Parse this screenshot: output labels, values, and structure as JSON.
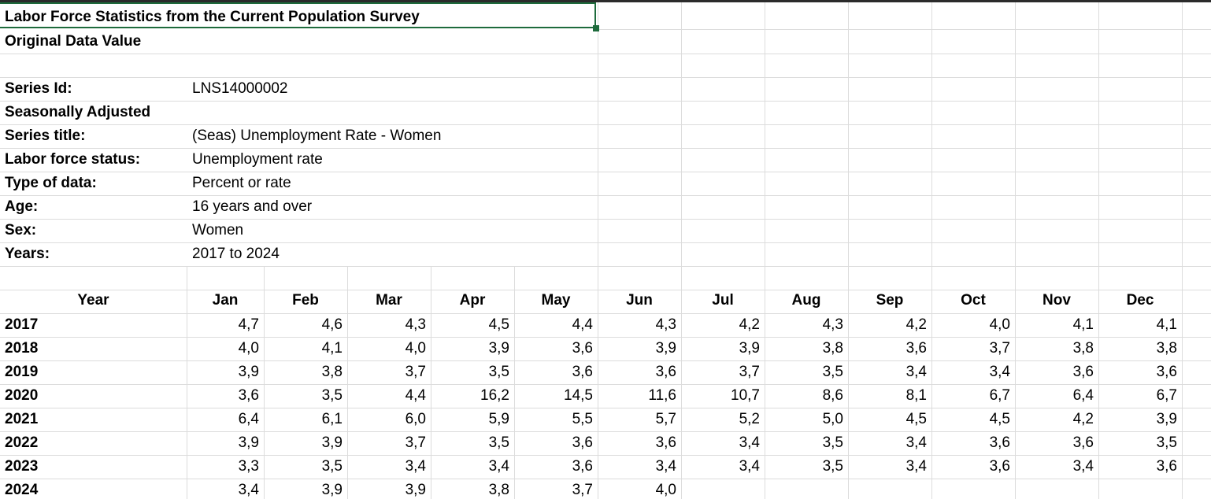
{
  "header": {
    "title": "Labor Force Statistics from the Current Population Survey",
    "subtitle": "Original Data Value"
  },
  "metadata": [
    {
      "label": "Series Id:",
      "value": "LNS14000002"
    },
    {
      "label": "Seasonally Adjusted"
    },
    {
      "label": "Series title:",
      "value": "(Seas) Unemployment Rate - Women"
    },
    {
      "label": "Labor force status:",
      "value": "Unemployment rate"
    },
    {
      "label": "Type of data:",
      "value": "Percent or rate"
    },
    {
      "label": "Age:",
      "value": "16 years and over"
    },
    {
      "label": "Sex:",
      "value": "Women"
    },
    {
      "label": "Years:",
      "value": "2017 to 2024"
    }
  ],
  "table": {
    "columns": [
      "Year",
      "Jan",
      "Feb",
      "Mar",
      "Apr",
      "May",
      "Jun",
      "Jul",
      "Aug",
      "Sep",
      "Oct",
      "Nov",
      "Dec"
    ],
    "rows": [
      [
        "2017",
        "4,7",
        "4,6",
        "4,3",
        "4,5",
        "4,4",
        "4,3",
        "4,2",
        "4,3",
        "4,2",
        "4,0",
        "4,1",
        "4,1"
      ],
      [
        "2018",
        "4,0",
        "4,1",
        "4,0",
        "3,9",
        "3,6",
        "3,9",
        "3,9",
        "3,8",
        "3,6",
        "3,7",
        "3,8",
        "3,8"
      ],
      [
        "2019",
        "3,9",
        "3,8",
        "3,7",
        "3,5",
        "3,6",
        "3,6",
        "3,7",
        "3,5",
        "3,4",
        "3,4",
        "3,6",
        "3,6"
      ],
      [
        "2020",
        "3,6",
        "3,5",
        "4,4",
        "16,2",
        "14,5",
        "11,6",
        "10,7",
        "8,6",
        "8,1",
        "6,7",
        "6,4",
        "6,7"
      ],
      [
        "2021",
        "6,4",
        "6,1",
        "6,0",
        "5,9",
        "5,5",
        "5,7",
        "5,2",
        "5,0",
        "4,5",
        "4,5",
        "4,2",
        "3,9"
      ],
      [
        "2022",
        "3,9",
        "3,9",
        "3,7",
        "3,5",
        "3,6",
        "3,6",
        "3,4",
        "3,5",
        "3,4",
        "3,6",
        "3,6",
        "3,5"
      ],
      [
        "2023",
        "3,3",
        "3,5",
        "3,4",
        "3,4",
        "3,6",
        "3,4",
        "3,4",
        "3,5",
        "3,4",
        "3,6",
        "3,4",
        "3,6"
      ],
      [
        "2024",
        "3,4",
        "3,9",
        "3,9",
        "3,8",
        "3,7",
        "4,0"
      ]
    ]
  }
}
